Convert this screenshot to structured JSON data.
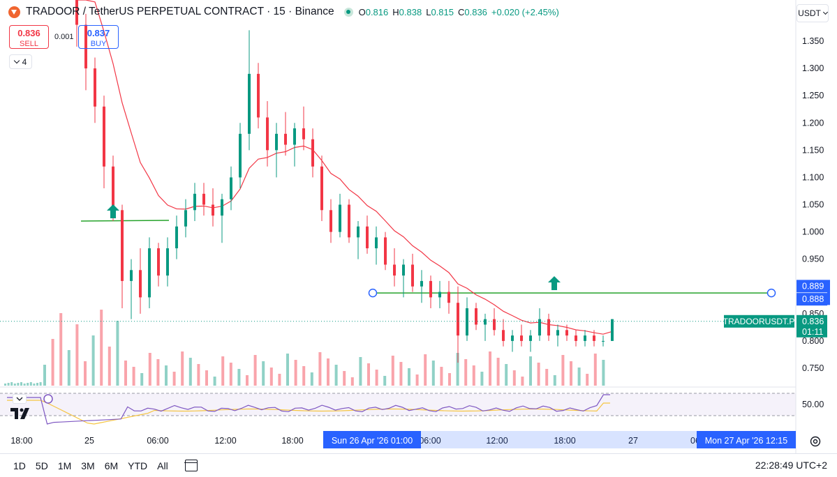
{
  "header": {
    "symbol_title": "TRADOOR / TetherUS PERPETUAL CONTRACT · 15 · Binance",
    "ohlc": [
      {
        "key": "O",
        "value": "0.816"
      },
      {
        "key": "H",
        "value": "0.838"
      },
      {
        "key": "L",
        "value": "0.815"
      },
      {
        "key": "C",
        "value": "0.836"
      }
    ],
    "change": "+0.020 (+2.45%)"
  },
  "trade": {
    "sell_price": "0.836",
    "sell_label": "SELL",
    "spread": "0.001",
    "buy_price": "0.837",
    "buy_label": "BUY"
  },
  "indicator_count": "4",
  "currency": "USDT",
  "colors": {
    "up": "#089981",
    "down": "#f23645",
    "ma": "#f23645",
    "hline": "#26a32b",
    "accent": "#2962ff",
    "rsi": "#7e57c2",
    "rsi_ma": "#f5c542"
  },
  "chart_data": {
    "type": "candlestick",
    "y_ticks": [
      "1.350",
      "1.300",
      "1.250",
      "1.200",
      "1.150",
      "1.100",
      "1.050",
      "1.000",
      "0.950",
      "0.900",
      "0.850",
      "0.800",
      "0.750"
    ],
    "x_ticks": [
      "18:00",
      "25",
      "06:00",
      "12:00",
      "18:00",
      "06:00",
      "12:00",
      "18:00",
      "27",
      "06"
    ],
    "ylim": [
      0.72,
      1.37
    ],
    "candles": [
      {
        "o": 1.44,
        "h": 1.47,
        "l": 1.34,
        "c": 1.38
      },
      {
        "o": 1.38,
        "h": 1.4,
        "l": 1.26,
        "c": 1.3
      },
      {
        "o": 1.3,
        "h": 1.32,
        "l": 1.2,
        "c": 1.23
      },
      {
        "o": 1.23,
        "h": 1.25,
        "l": 1.08,
        "c": 1.12
      },
      {
        "o": 1.12,
        "h": 1.14,
        "l": 1.02,
        "c": 1.04
      },
      {
        "o": 1.04,
        "h": 1.05,
        "l": 0.86,
        "c": 0.91
      },
      {
        "o": 0.91,
        "h": 0.95,
        "l": 0.84,
        "c": 0.93
      },
      {
        "o": 0.93,
        "h": 0.97,
        "l": 0.85,
        "c": 0.88
      },
      {
        "o": 0.88,
        "h": 0.99,
        "l": 0.86,
        "c": 0.97
      },
      {
        "o": 0.97,
        "h": 0.98,
        "l": 0.9,
        "c": 0.92
      },
      {
        "o": 0.92,
        "h": 0.99,
        "l": 0.9,
        "c": 0.97
      },
      {
        "o": 0.97,
        "h": 1.03,
        "l": 0.95,
        "c": 1.01
      },
      {
        "o": 1.01,
        "h": 1.06,
        "l": 0.99,
        "c": 1.04
      },
      {
        "o": 1.04,
        "h": 1.09,
        "l": 1.02,
        "c": 1.07
      },
      {
        "o": 1.07,
        "h": 1.09,
        "l": 1.03,
        "c": 1.05
      },
      {
        "o": 1.05,
        "h": 1.08,
        "l": 1.01,
        "c": 1.03
      },
      {
        "o": 1.03,
        "h": 1.07,
        "l": 0.98,
        "c": 1.06
      },
      {
        "o": 1.06,
        "h": 1.12,
        "l": 1.04,
        "c": 1.1
      },
      {
        "o": 1.1,
        "h": 1.2,
        "l": 1.08,
        "c": 1.18
      },
      {
        "o": 1.18,
        "h": 1.37,
        "l": 1.15,
        "c": 1.29
      },
      {
        "o": 1.29,
        "h": 1.31,
        "l": 1.19,
        "c": 1.21
      },
      {
        "o": 1.21,
        "h": 1.24,
        "l": 1.12,
        "c": 1.15
      },
      {
        "o": 1.15,
        "h": 1.2,
        "l": 1.1,
        "c": 1.18
      },
      {
        "o": 1.18,
        "h": 1.22,
        "l": 1.14,
        "c": 1.16
      },
      {
        "o": 1.16,
        "h": 1.2,
        "l": 1.12,
        "c": 1.19
      },
      {
        "o": 1.19,
        "h": 1.23,
        "l": 1.15,
        "c": 1.17
      },
      {
        "o": 1.17,
        "h": 1.19,
        "l": 1.1,
        "c": 1.12
      },
      {
        "o": 1.12,
        "h": 1.14,
        "l": 1.02,
        "c": 1.04
      },
      {
        "o": 1.04,
        "h": 1.06,
        "l": 0.98,
        "c": 1.0
      },
      {
        "o": 1.0,
        "h": 1.07,
        "l": 0.99,
        "c": 1.05
      },
      {
        "o": 1.05,
        "h": 1.06,
        "l": 0.98,
        "c": 0.99
      },
      {
        "o": 0.99,
        "h": 1.02,
        "l": 0.95,
        "c": 1.01
      },
      {
        "o": 1.01,
        "h": 1.03,
        "l": 0.96,
        "c": 0.97
      },
      {
        "o": 0.97,
        "h": 1.01,
        "l": 0.94,
        "c": 0.99
      },
      {
        "o": 0.99,
        "h": 1.0,
        "l": 0.93,
        "c": 0.94
      },
      {
        "o": 0.94,
        "h": 0.97,
        "l": 0.9,
        "c": 0.92
      },
      {
        "o": 0.92,
        "h": 0.95,
        "l": 0.88,
        "c": 0.94
      },
      {
        "o": 0.94,
        "h": 0.96,
        "l": 0.89,
        "c": 0.9
      },
      {
        "o": 0.9,
        "h": 0.93,
        "l": 0.87,
        "c": 0.91
      },
      {
        "o": 0.91,
        "h": 0.92,
        "l": 0.86,
        "c": 0.88
      },
      {
        "o": 0.88,
        "h": 0.91,
        "l": 0.86,
        "c": 0.89
      },
      {
        "o": 0.89,
        "h": 0.91,
        "l": 0.85,
        "c": 0.87
      },
      {
        "o": 0.87,
        "h": 0.9,
        "l": 0.76,
        "c": 0.81
      },
      {
        "o": 0.81,
        "h": 0.88,
        "l": 0.8,
        "c": 0.86
      },
      {
        "o": 0.86,
        "h": 0.87,
        "l": 0.82,
        "c": 0.83
      },
      {
        "o": 0.83,
        "h": 0.85,
        "l": 0.8,
        "c": 0.84
      },
      {
        "o": 0.84,
        "h": 0.86,
        "l": 0.81,
        "c": 0.82
      },
      {
        "o": 0.82,
        "h": 0.84,
        "l": 0.79,
        "c": 0.8
      },
      {
        "o": 0.8,
        "h": 0.82,
        "l": 0.78,
        "c": 0.81
      },
      {
        "o": 0.81,
        "h": 0.83,
        "l": 0.79,
        "c": 0.8
      },
      {
        "o": 0.8,
        "h": 0.82,
        "l": 0.78,
        "c": 0.81
      },
      {
        "o": 0.81,
        "h": 0.86,
        "l": 0.8,
        "c": 0.84
      },
      {
        "o": 0.84,
        "h": 0.85,
        "l": 0.8,
        "c": 0.81
      },
      {
        "o": 0.81,
        "h": 0.83,
        "l": 0.79,
        "c": 0.82
      },
      {
        "o": 0.82,
        "h": 0.83,
        "l": 0.8,
        "c": 0.81
      },
      {
        "o": 0.81,
        "h": 0.82,
        "l": 0.79,
        "c": 0.8
      },
      {
        "o": 0.8,
        "h": 0.82,
        "l": 0.79,
        "c": 0.81
      },
      {
        "o": 0.81,
        "h": 0.82,
        "l": 0.79,
        "c": 0.8
      },
      {
        "o": 0.8,
        "h": 0.81,
        "l": 0.79,
        "c": 0.8
      },
      {
        "o": 0.8,
        "h": 0.84,
        "l": 0.8,
        "c": 0.84
      }
    ],
    "horizontal_lines": [
      1.02,
      0.888
    ],
    "price_labels": [
      {
        "text": "0.889",
        "value": 0.889
      },
      {
        "text": "0.888",
        "value": 0.888
      }
    ],
    "current_price": {
      "symbol": "TRADOORUSDT.P",
      "price": "0.836",
      "countdown": "01:11",
      "value": 0.836
    },
    "rsi_level": "50.00",
    "crosshair_labels": {
      "date_left": "Sun 26 Apr '26   01:00",
      "date_right": "Mon 27 Apr '26   12:15"
    }
  },
  "bottom_bar": {
    "ranges": [
      "1D",
      "5D",
      "1M",
      "3M",
      "6M",
      "YTD",
      "All"
    ],
    "clock": "22:28:49 UTC+2"
  }
}
